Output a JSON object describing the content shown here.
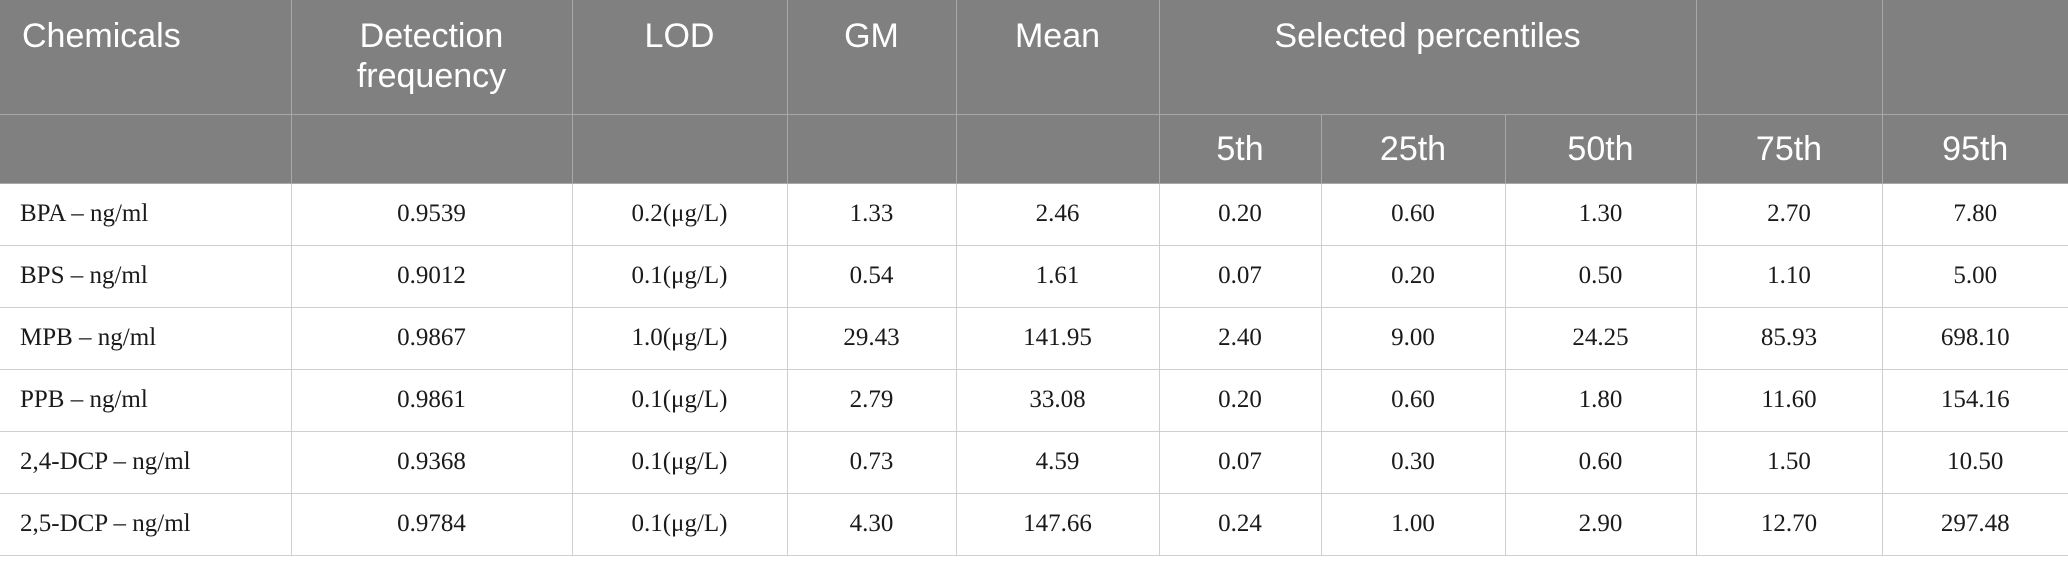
{
  "table": {
    "headers": {
      "chemicals": "Chemicals",
      "detection_line1": "Detection",
      "detection_line2": "frequency",
      "lod": "LOD",
      "gm": "GM",
      "mean": "Mean",
      "selected_percentiles": "Selected percentiles",
      "p5": "5th",
      "p25": "25th",
      "p50": "50th",
      "p75": "75th",
      "p95": "95th"
    },
    "rows": [
      {
        "chemical": "BPA – ng/ml",
        "detection": "0.9539",
        "lod": "0.2(μg/L)",
        "gm": "1.33",
        "mean": "2.46",
        "p5": "0.20",
        "p25": "0.60",
        "p50": "1.30",
        "p75": "2.70",
        "p95": "7.80"
      },
      {
        "chemical": "BPS – ng/ml",
        "detection": "0.9012",
        "lod": "0.1(μg/L)",
        "gm": "0.54",
        "mean": "1.61",
        "p5": "0.07",
        "p25": "0.20",
        "p50": "0.50",
        "p75": "1.10",
        "p95": "5.00"
      },
      {
        "chemical": "MPB – ng/ml",
        "detection": "0.9867",
        "lod": "1.0(μg/L)",
        "gm": "29.43",
        "mean": "141.95",
        "p5": "2.40",
        "p25": "9.00",
        "p50": "24.25",
        "p75": "85.93",
        "p95": "698.10"
      },
      {
        "chemical": "PPB – ng/ml",
        "detection": "0.9861",
        "lod": "0.1(μg/L)",
        "gm": "2.79",
        "mean": "33.08",
        "p5": "0.20",
        "p25": "0.60",
        "p50": "1.80",
        "p75": "11.60",
        "p95": "154.16"
      },
      {
        "chemical": "2,4-DCP – ng/ml",
        "detection": "0.9368",
        "lod": "0.1(μg/L)",
        "gm": "0.73",
        "mean": "4.59",
        "p5": "0.07",
        "p25": "0.30",
        "p50": "0.60",
        "p75": "1.50",
        "p95": "10.50"
      },
      {
        "chemical": "2,5-DCP – ng/ml",
        "detection": "0.9784",
        "lod": "0.1(μg/L)",
        "gm": "4.30",
        "mean": "147.66",
        "p5": "0.24",
        "p25": "1.00",
        "p50": "2.90",
        "p75": "12.70",
        "p95": "297.48"
      }
    ]
  }
}
